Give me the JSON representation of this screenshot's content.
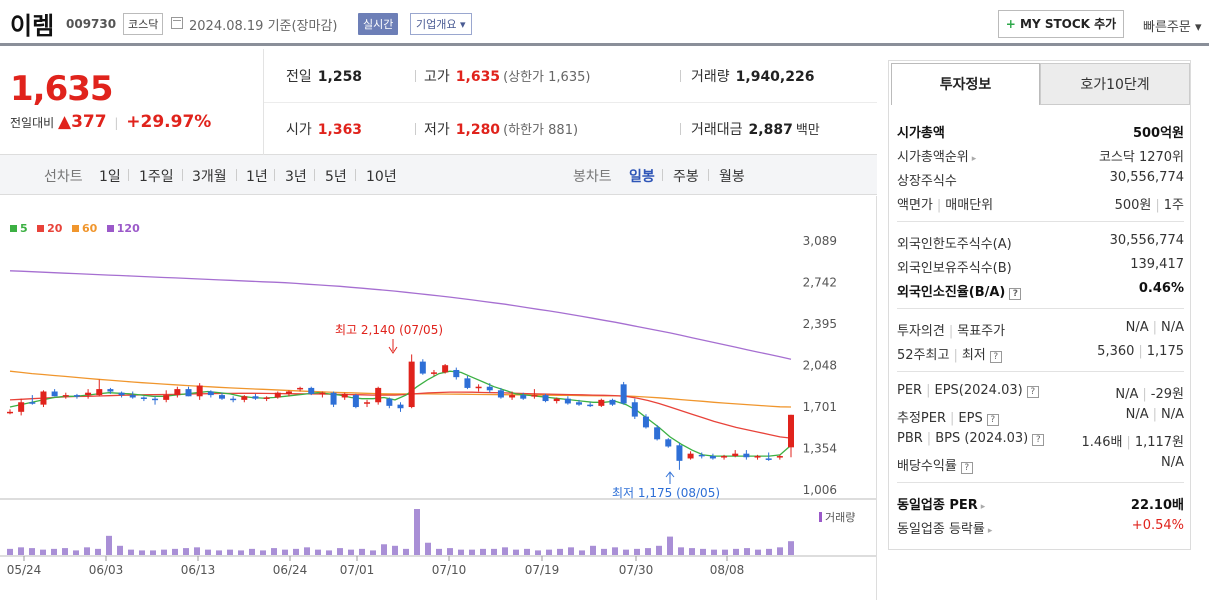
{
  "header": {
    "name": "이렘",
    "code": "009730",
    "market": "코스닥",
    "date_text": "2024.08.19  기준(장마감)",
    "realtime": "실시간",
    "company_overview": "기업개요 ▾",
    "mystock_plus": "+",
    "mystock": "MY STOCK 추가",
    "quick_order": "빠른주문 ▾"
  },
  "price": {
    "current": "1,635",
    "compare_label": "전일대비",
    "change_arrow": "▲",
    "change": "377",
    "change_rate": "+29.97%"
  },
  "stats": {
    "prev_label": "전일",
    "prev": "1,258",
    "high_label": "고가",
    "high": "1,635",
    "upper_limit": "(상한가 1,635)",
    "volume_label": "거래량",
    "volume": "1,940,226",
    "open_label": "시가",
    "open": "1,363",
    "low_label": "저가",
    "low": "1,280",
    "lower_limit": "(하한가 881)",
    "amount_label": "거래대금",
    "amount": "2,887",
    "amount_unit": "백만"
  },
  "periods": {
    "line_label": "선차트",
    "items": [
      "1일",
      "1주일",
      "3개월",
      "1년",
      "3년",
      "5년",
      "10년"
    ],
    "candle_label": "봉차트",
    "candle_items": [
      "일봉",
      "주봉",
      "월봉"
    ],
    "selected": "일봉"
  },
  "legend": [
    {
      "label": "5",
      "color": "#3cb043"
    },
    {
      "label": "20",
      "color": "#e8433a"
    },
    {
      "label": "60",
      "color": "#f0962d"
    },
    {
      "label": "120",
      "color": "#9b59c9"
    }
  ],
  "chart_data": {
    "type": "candlestick",
    "y_ticks": [
      "3,089",
      "2,742",
      "2,395",
      "2,048",
      "1,701",
      "1,354",
      "1,006"
    ],
    "ylim": [
      1006,
      3089
    ],
    "x_ticks": [
      "05/24",
      "06/03",
      "06/13",
      "06/24",
      "07/01",
      "07/10",
      "07/19",
      "07/30",
      "08/08"
    ],
    "high_annotation": "최고 2,140 (07/05)",
    "low_annotation": "최저 1,175 (08/05)",
    "volume_label": "거래량",
    "candles": [
      {
        "o": 1650,
        "h": 1680,
        "l": 1640,
        "c": 1660
      },
      {
        "o": 1660,
        "h": 1770,
        "l": 1630,
        "c": 1740
      },
      {
        "o": 1740,
        "h": 1800,
        "l": 1720,
        "c": 1730
      },
      {
        "o": 1720,
        "h": 1840,
        "l": 1700,
        "c": 1830
      },
      {
        "o": 1830,
        "h": 1850,
        "l": 1790,
        "c": 1790
      },
      {
        "o": 1790,
        "h": 1820,
        "l": 1770,
        "c": 1800
      },
      {
        "o": 1800,
        "h": 1810,
        "l": 1770,
        "c": 1790
      },
      {
        "o": 1800,
        "h": 1850,
        "l": 1770,
        "c": 1820
      },
      {
        "o": 1800,
        "h": 1930,
        "l": 1790,
        "c": 1850
      },
      {
        "o": 1850,
        "h": 1860,
        "l": 1810,
        "c": 1830
      },
      {
        "o": 1820,
        "h": 1830,
        "l": 1780,
        "c": 1800
      },
      {
        "o": 1800,
        "h": 1830,
        "l": 1770,
        "c": 1780
      },
      {
        "o": 1780,
        "h": 1790,
        "l": 1750,
        "c": 1770
      },
      {
        "o": 1770,
        "h": 1790,
        "l": 1720,
        "c": 1760
      },
      {
        "o": 1760,
        "h": 1840,
        "l": 1740,
        "c": 1800
      },
      {
        "o": 1800,
        "h": 1870,
        "l": 1780,
        "c": 1850
      },
      {
        "o": 1850,
        "h": 1870,
        "l": 1790,
        "c": 1790
      },
      {
        "o": 1790,
        "h": 1900,
        "l": 1760,
        "c": 1880
      },
      {
        "o": 1830,
        "h": 1840,
        "l": 1780,
        "c": 1800
      },
      {
        "o": 1800,
        "h": 1820,
        "l": 1760,
        "c": 1770
      },
      {
        "o": 1770,
        "h": 1790,
        "l": 1740,
        "c": 1760
      },
      {
        "o": 1760,
        "h": 1800,
        "l": 1740,
        "c": 1790
      },
      {
        "o": 1790,
        "h": 1810,
        "l": 1760,
        "c": 1770
      },
      {
        "o": 1770,
        "h": 1790,
        "l": 1750,
        "c": 1780
      },
      {
        "o": 1780,
        "h": 1830,
        "l": 1770,
        "c": 1820
      },
      {
        "o": 1810,
        "h": 1840,
        "l": 1790,
        "c": 1830
      },
      {
        "o": 1850,
        "h": 1870,
        "l": 1830,
        "c": 1860
      },
      {
        "o": 1860,
        "h": 1870,
        "l": 1800,
        "c": 1810
      },
      {
        "o": 1810,
        "h": 1830,
        "l": 1780,
        "c": 1820
      },
      {
        "o": 1820,
        "h": 1830,
        "l": 1700,
        "c": 1720
      },
      {
        "o": 1780,
        "h": 1820,
        "l": 1760,
        "c": 1810
      },
      {
        "o": 1800,
        "h": 1810,
        "l": 1690,
        "c": 1700
      },
      {
        "o": 1730,
        "h": 1760,
        "l": 1700,
        "c": 1740
      },
      {
        "o": 1740,
        "h": 1870,
        "l": 1720,
        "c": 1860
      },
      {
        "o": 1770,
        "h": 1780,
        "l": 1690,
        "c": 1710
      },
      {
        "o": 1720,
        "h": 1740,
        "l": 1660,
        "c": 1690
      },
      {
        "o": 1700,
        "h": 2140,
        "l": 1690,
        "c": 2080
      },
      {
        "o": 2080,
        "h": 2100,
        "l": 1970,
        "c": 1980
      },
      {
        "o": 1980,
        "h": 2010,
        "l": 1960,
        "c": 1990
      },
      {
        "o": 1990,
        "h": 2060,
        "l": 1980,
        "c": 2050
      },
      {
        "o": 2010,
        "h": 2030,
        "l": 1930,
        "c": 1950
      },
      {
        "o": 1940,
        "h": 1960,
        "l": 1850,
        "c": 1860
      },
      {
        "o": 1860,
        "h": 1890,
        "l": 1830,
        "c": 1870
      },
      {
        "o": 1870,
        "h": 1900,
        "l": 1820,
        "c": 1840
      },
      {
        "o": 1840,
        "h": 1860,
        "l": 1770,
        "c": 1780
      },
      {
        "o": 1780,
        "h": 1830,
        "l": 1760,
        "c": 1800
      },
      {
        "o": 1800,
        "h": 1820,
        "l": 1760,
        "c": 1770
      },
      {
        "o": 1790,
        "h": 1850,
        "l": 1770,
        "c": 1800
      },
      {
        "o": 1800,
        "h": 1810,
        "l": 1740,
        "c": 1750
      },
      {
        "o": 1750,
        "h": 1780,
        "l": 1730,
        "c": 1770
      },
      {
        "o": 1770,
        "h": 1790,
        "l": 1720,
        "c": 1730
      },
      {
        "o": 1740,
        "h": 1760,
        "l": 1710,
        "c": 1720
      },
      {
        "o": 1720,
        "h": 1740,
        "l": 1700,
        "c": 1710
      },
      {
        "o": 1710,
        "h": 1770,
        "l": 1700,
        "c": 1760
      },
      {
        "o": 1760,
        "h": 1770,
        "l": 1710,
        "c": 1720
      },
      {
        "o": 1890,
        "h": 1910,
        "l": 1720,
        "c": 1730
      },
      {
        "o": 1740,
        "h": 1770,
        "l": 1600,
        "c": 1620
      },
      {
        "o": 1620,
        "h": 1640,
        "l": 1520,
        "c": 1530
      },
      {
        "o": 1530,
        "h": 1550,
        "l": 1420,
        "c": 1430
      },
      {
        "o": 1430,
        "h": 1440,
        "l": 1360,
        "c": 1370
      },
      {
        "o": 1380,
        "h": 1400,
        "l": 1175,
        "c": 1250
      },
      {
        "o": 1270,
        "h": 1330,
        "l": 1260,
        "c": 1310
      },
      {
        "o": 1300,
        "h": 1320,
        "l": 1270,
        "c": 1290
      },
      {
        "o": 1290,
        "h": 1310,
        "l": 1260,
        "c": 1270
      },
      {
        "o": 1280,
        "h": 1300,
        "l": 1260,
        "c": 1290
      },
      {
        "o": 1290,
        "h": 1340,
        "l": 1280,
        "c": 1310
      },
      {
        "o": 1310,
        "h": 1340,
        "l": 1260,
        "c": 1280
      },
      {
        "o": 1280,
        "h": 1300,
        "l": 1260,
        "c": 1290
      },
      {
        "o": 1270,
        "h": 1320,
        "l": 1250,
        "c": 1260
      },
      {
        "o": 1280,
        "h": 1300,
        "l": 1260,
        "c": 1290
      },
      {
        "o": 1363,
        "h": 1635,
        "l": 1280,
        "c": 1635
      }
    ],
    "ma5": [
      1700,
      1720,
      1740,
      1760,
      1780,
      1790,
      1790,
      1800,
      1810,
      1820,
      1815,
      1810,
      1800,
      1790,
      1790,
      1800,
      1810,
      1820,
      1830,
      1820,
      1810,
      1790,
      1780,
      1775,
      1780,
      1790,
      1800,
      1810,
      1820,
      1810,
      1800,
      1780,
      1770,
      1770,
      1780,
      1760,
      1800,
      1870,
      1930,
      1980,
      2000,
      1990,
      1950,
      1910,
      1870,
      1840,
      1810,
      1800,
      1790,
      1780,
      1770,
      1760,
      1750,
      1740,
      1740,
      1750,
      1720,
      1670,
      1600,
      1530,
      1450,
      1390,
      1340,
      1300,
      1290,
      1290,
      1290,
      1290,
      1290,
      1290,
      1300,
      1380
    ],
    "ma20": [
      1760,
      1765,
      1770,
      1775,
      1780,
      1785,
      1788,
      1790,
      1792,
      1795,
      1798,
      1800,
      1802,
      1804,
      1805,
      1806,
      1808,
      1810,
      1812,
      1813,
      1814,
      1815,
      1815,
      1814,
      1813,
      1812,
      1811,
      1810,
      1809,
      1808,
      1806,
      1804,
      1802,
      1800,
      1800,
      1800,
      1805,
      1812,
      1818,
      1822,
      1825,
      1825,
      1824,
      1822,
      1820,
      1818,
      1815,
      1812,
      1810,
      1808,
      1806,
      1804,
      1802,
      1800,
      1798,
      1796,
      1790,
      1775,
      1755,
      1730,
      1700,
      1670,
      1640,
      1610,
      1580,
      1555,
      1530,
      1510,
      1490,
      1470,
      1450,
      1440
    ],
    "ma60": [
      2000,
      1990,
      1980,
      1972,
      1964,
      1956,
      1948,
      1940,
      1932,
      1925,
      1918,
      1910,
      1904,
      1898,
      1892,
      1886,
      1880,
      1875,
      1870,
      1865,
      1860,
      1856,
      1852,
      1848,
      1844,
      1840,
      1836,
      1832,
      1828,
      1825,
      1822,
      1819,
      1816,
      1813,
      1811,
      1810,
      1810,
      1810,
      1810,
      1809,
      1808,
      1807,
      1806,
      1805,
      1804,
      1803,
      1802,
      1801,
      1800,
      1799,
      1798,
      1797,
      1796,
      1795,
      1794,
      1793,
      1792,
      1788,
      1783,
      1777,
      1770,
      1762,
      1755,
      1748,
      1740,
      1733,
      1726,
      1720,
      1714,
      1708,
      1702,
      1700
    ],
    "ma120": [
      2840,
      2836,
      2832,
      2828,
      2824,
      2820,
      2816,
      2812,
      2808,
      2804,
      2800,
      2796,
      2792,
      2788,
      2784,
      2780,
      2776,
      2772,
      2768,
      2764,
      2760,
      2756,
      2752,
      2748,
      2744,
      2740,
      2734,
      2728,
      2722,
      2716,
      2710,
      2702,
      2694,
      2686,
      2678,
      2670,
      2660,
      2650,
      2640,
      2630,
      2620,
      2608,
      2596,
      2584,
      2572,
      2560,
      2546,
      2532,
      2518,
      2504,
      2490,
      2474,
      2458,
      2442,
      2426,
      2410,
      2392,
      2374,
      2356,
      2338,
      2320,
      2300,
      2280,
      2260,
      2240,
      2220,
      2200,
      2180,
      2160,
      2140,
      2120,
      2100
    ],
    "volumes": [
      8,
      10,
      9,
      7,
      8,
      9,
      6,
      10,
      8,
      25,
      12,
      7,
      6,
      6,
      7,
      8,
      9,
      10,
      7,
      6,
      7,
      6,
      8,
      6,
      9,
      7,
      8,
      10,
      7,
      6,
      9,
      7,
      8,
      6,
      14,
      12,
      8,
      60,
      16,
      8,
      9,
      7,
      7,
      8,
      8,
      10,
      7,
      8,
      6,
      7,
      8,
      10,
      6,
      12,
      8,
      10,
      7,
      8,
      9,
      12,
      24,
      10,
      9,
      8,
      7,
      7,
      8,
      9,
      7,
      8,
      10,
      18
    ]
  },
  "panel": {
    "tab_active": "투자정보",
    "tab_inactive": "호가10단계",
    "group1": [
      {
        "k": "시가총액",
        "v": "500억원",
        "bold": true
      },
      {
        "k": "시가총액순위",
        "v": "코스닥 1270위",
        "arrow": true
      },
      {
        "k": "상장주식수",
        "v": "30,556,774"
      },
      {
        "k": "액면가",
        "k2": "매매단위",
        "v": "500원",
        "v2": "1주"
      }
    ],
    "group2": [
      {
        "k": "외국인한도주식수(A)",
        "v": "30,556,774"
      },
      {
        "k": "외국인보유주식수(B)",
        "v": "139,417"
      },
      {
        "k": "외국인소진율(B/A)",
        "v": "0.46%",
        "bold": true,
        "q": true
      }
    ],
    "group3": [
      {
        "k": "투자의견",
        "k2": "목표주가",
        "v": "N/A",
        "v2": "N/A"
      },
      {
        "k": "52주최고",
        "k2": "최저",
        "v": "5,360",
        "v2": "1,175",
        "q": true
      }
    ],
    "group4": [
      {
        "k": "PER",
        "k2": "EPS(2024.03)",
        "v": "N/A",
        "v2": "-29원",
        "q": true
      },
      {
        "k": "추정PER",
        "k2": "EPS",
        "v": "N/A",
        "v2": "N/A",
        "q": true
      },
      {
        "k": "PBR",
        "k2": "BPS (2024.03)",
        "v": "1.46배",
        "v2": "1,117원",
        "q": true
      },
      {
        "k": "배당수익률",
        "v": "N/A",
        "q": true
      }
    ],
    "group5": [
      {
        "k": "동일업종 PER",
        "v": "22.10배",
        "bold": true,
        "arrow": true
      },
      {
        "k": "동일업종 등락률",
        "v": "+0.54%",
        "red": true,
        "arrow": true
      }
    ]
  }
}
